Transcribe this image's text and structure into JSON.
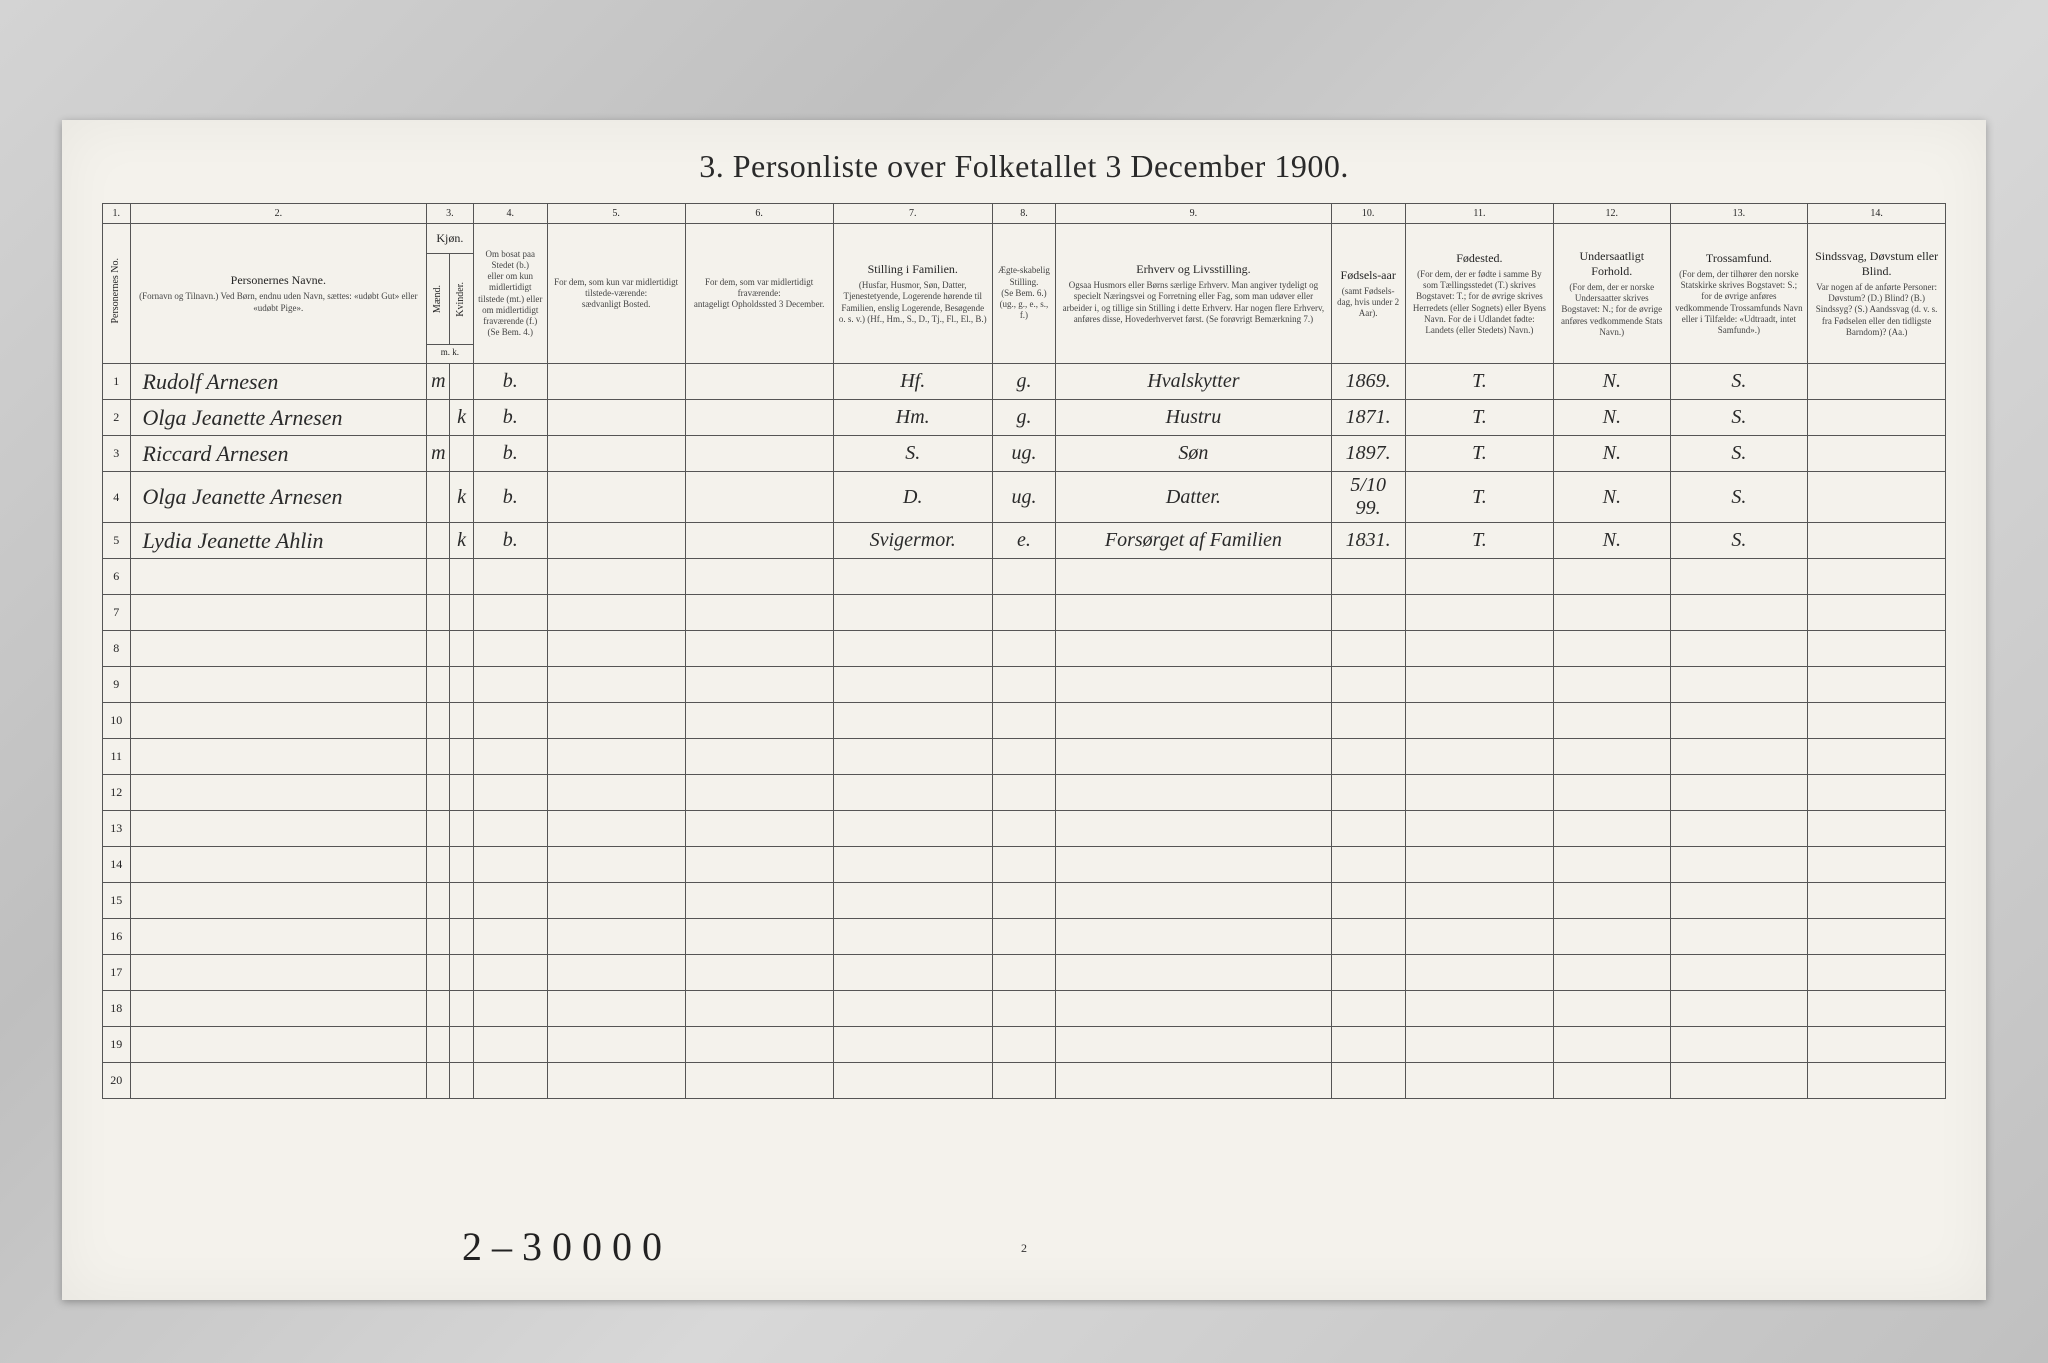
{
  "title": "3. Personliste over Folketallet 3 December 1900.",
  "column_numbers": [
    "1.",
    "2.",
    "3.",
    "4.",
    "5.",
    "6.",
    "7.",
    "8.",
    "9.",
    "10.",
    "11.",
    "12.",
    "13.",
    "14."
  ],
  "headers": {
    "col1": {
      "main": "Personernes No."
    },
    "col2": {
      "main": "Personernes Navne.",
      "sub": "(Fornavn og Tilnavn.)\nVed Børn, endnu uden Navn, sættes: «udøbt Gut» eller «udøbt Pige»."
    },
    "col3": {
      "main": "Kjøn.",
      "sub_m": "Mænd.",
      "sub_k": "Kvinder.",
      "foot": "m. k."
    },
    "col4": {
      "main": "Om bosat paa Stedet (b.)",
      "sub": "eller om kun midlertidigt tilstede (mt.) eller om midlertidigt fraværende (f.) (Se Bem. 4.)"
    },
    "col5": {
      "main": "For dem, som kun var midlertidigt tilstede-værende:",
      "sub": "sædvanligt Bosted."
    },
    "col6": {
      "main": "For dem, som var midlertidigt fraværende:",
      "sub": "antageligt Opholdssted 3 December."
    },
    "col7": {
      "main": "Stilling i Familien.",
      "sub": "(Husfar, Husmor, Søn, Datter, Tjenestetyende, Logerende hørende til Familien, enslig Logerende, Besøgende o. s. v.)\n(Hf., Hm., S., D., Tj., Fl., El., B.)"
    },
    "col8": {
      "main": "Ægte-skabelig Stilling.",
      "sub": "(Se Bem. 6.)\n(ug., g., e., s., f.)"
    },
    "col9": {
      "main": "Erhverv og Livsstilling.",
      "sub": "Ogsaa Husmors eller Børns særlige Erhverv. Man angiver tydeligt og specielt Næringsvei og Forretning eller Fag, som man udøver eller arbeider i, og tillige sin Stilling i dette Erhverv. Har nogen flere Erhverv, anføres disse, Hovederhvervet først.\n(Se forøvrigt Bemærkning 7.)"
    },
    "col10": {
      "main": "Fødsels-aar",
      "sub": "(samt Fødsels-dag, hvis under 2 Aar)."
    },
    "col11": {
      "main": "Fødested.",
      "sub": "(For dem, der er fødte i samme By som Tællingsstedet (T.) skrives Bogstavet: T.; for de øvrige skrives Herredets (eller Sognets) eller Byens Navn. For de i Udlandet fødte: Landets (eller Stedets) Navn.)"
    },
    "col12": {
      "main": "Undersaatligt Forhold.",
      "sub": "(For dem, der er norske Undersaatter skrives Bogstavet: N.; for de øvrige anføres vedkommende Stats Navn.)"
    },
    "col13": {
      "main": "Trossamfund.",
      "sub": "(For dem, der tilhører den norske Statskirke skrives Bogstavet: S.; for de øvrige anføres vedkommende Trossamfunds Navn eller i Tilfælde: «Udtraadt, intet Samfund».)"
    },
    "col14": {
      "main": "Sindssvag, Døvstum eller Blind.",
      "sub": "Var nogen af de anførte Personer:\nDøvstum? (D.)\nBlind? (B.)\nSindssyg? (S.)\nAandssvag (d. v. s. fra Fødselen eller den tidligste Barndom)? (Aa.)"
    }
  },
  "rows": [
    {
      "num": "1",
      "name": "Rudolf Arnesen",
      "sex_m": "m",
      "sex_k": "",
      "bosat": "b.",
      "col5": "",
      "col6": "",
      "stilling": "Hf.",
      "aegte": "g.",
      "erhverv": "Hvalskytter",
      "aar": "1869.",
      "fodested": "T.",
      "under": "N.",
      "tros": "S.",
      "sind": ""
    },
    {
      "num": "2",
      "name": "Olga Jeanette Arnesen",
      "sex_m": "",
      "sex_k": "k",
      "bosat": "b.",
      "col5": "",
      "col6": "",
      "stilling": "Hm.",
      "aegte": "g.",
      "erhverv": "Hustru",
      "aar": "1871.",
      "fodested": "T.",
      "under": "N.",
      "tros": "S.",
      "sind": ""
    },
    {
      "num": "3",
      "name": "Riccard Arnesen",
      "sex_m": "m",
      "sex_k": "",
      "bosat": "b.",
      "col5": "",
      "col6": "",
      "stilling": "S.",
      "aegte": "ug.",
      "erhverv": "Søn",
      "aar": "1897.",
      "fodested": "T.",
      "under": "N.",
      "tros": "S.",
      "sind": ""
    },
    {
      "num": "4",
      "name": "Olga Jeanette Arnesen",
      "sex_m": "",
      "sex_k": "k",
      "bosat": "b.",
      "col5": "",
      "col6": "",
      "stilling": "D.",
      "aegte": "ug.",
      "erhverv": "Datter.",
      "aar": "5/10 99.",
      "fodested": "T.",
      "under": "N.",
      "tros": "S.",
      "sind": ""
    },
    {
      "num": "5",
      "name": "Lydia Jeanette Ahlin",
      "sex_m": "",
      "sex_k": "k",
      "bosat": "b.",
      "col5": "",
      "col6": "",
      "stilling": "Svigermor.",
      "aegte": "e.",
      "erhverv": "Forsørget af Familien",
      "aar": "1831.",
      "fodested": "T.",
      "under": "N.",
      "tros": "S.",
      "sind": ""
    }
  ],
  "empty_row_nums": [
    "6",
    "7",
    "8",
    "9",
    "10",
    "11",
    "12",
    "13",
    "14",
    "15",
    "16",
    "17",
    "18",
    "19",
    "20"
  ],
  "footer_scribble": "2 – 3 0 0 0 0",
  "page_number": "2",
  "colors": {
    "paper": "#f4f2ec",
    "ink": "#2a2a2a",
    "border": "#555555",
    "bg": "#c8c8c8"
  }
}
